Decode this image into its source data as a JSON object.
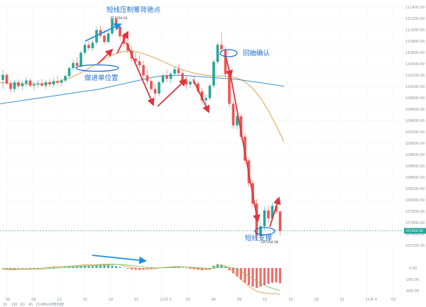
{
  "chart_data": {
    "type": "candlestick",
    "y_axis_ticks": [
      "111400.00",
      "111200.00",
      "111000.00",
      "110800.00",
      "110600.00",
      "110400.00",
      "110200.00",
      "110000.00",
      "109800.00",
      "109600.00",
      "109400.00",
      "109200.00",
      "109000.00",
      "108800.00",
      "108600.00",
      "108400.00",
      "108200.00",
      "108000.00",
      "107800.00",
      "107600.00",
      "107400.00",
      "107200.00"
    ],
    "ylim": [
      107080,
      111480
    ],
    "x_axis_ticks": [
      "06",
      "09",
      "12",
      "15",
      "18",
      "21",
      "11月 3",
      "03",
      "06",
      "09",
      "12",
      "15",
      "18",
      "21",
      "11月 4",
      "03"
    ],
    "high_label": "111250.01",
    "low_label": "107259.58",
    "last_price": "107460.00",
    "last_price_value": 107460,
    "indicator_ticks": [
      "0.00",
      "-200.00",
      "-400.00"
    ],
    "indicator_footer": [
      "1h",
      "1W",
      "1D",
      "4h",
      "15m",
      "Mon",
      "对数刻度"
    ],
    "annotations": [
      {
        "text": "短线压制筹背驰点"
      },
      {
        "text": "回抽确认"
      },
      {
        "text": "做进单位置"
      },
      {
        "text": "短线支撑"
      }
    ],
    "candles": [
      [
        110120,
        110300,
        109960,
        110210
      ],
      [
        110210,
        110240,
        110040,
        110060
      ],
      [
        110060,
        110100,
        109900,
        109960
      ],
      [
        109960,
        110120,
        109900,
        110080
      ],
      [
        110080,
        110130,
        109960,
        110010
      ],
      [
        110010,
        110110,
        109940,
        110060
      ],
      [
        110060,
        110170,
        110010,
        110110
      ],
      [
        110110,
        110150,
        109990,
        110020
      ],
      [
        110020,
        110090,
        109940,
        110040
      ],
      [
        110040,
        110120,
        109990,
        110060
      ],
      [
        110060,
        110140,
        110000,
        110020
      ],
      [
        110020,
        110110,
        109960,
        110080
      ],
      [
        110080,
        110140,
        110000,
        110040
      ],
      [
        110040,
        110160,
        109990,
        110100
      ],
      [
        110100,
        110190,
        110030,
        110070
      ],
      [
        110070,
        110150,
        110010,
        110110
      ],
      [
        110110,
        110220,
        110080,
        110190
      ],
      [
        110190,
        110360,
        110160,
        110330
      ],
      [
        110330,
        110480,
        110290,
        110420
      ],
      [
        110420,
        110520,
        110330,
        110370
      ],
      [
        110370,
        110640,
        110340,
        110600
      ],
      [
        110600,
        110790,
        110560,
        110740
      ],
      [
        110740,
        110810,
        110640,
        110680
      ],
      [
        110680,
        110820,
        110640,
        110780
      ],
      [
        110780,
        111060,
        110740,
        111000
      ],
      [
        111000,
        111080,
        110860,
        110900
      ],
      [
        110900,
        111000,
        110740,
        110790
      ],
      [
        110790,
        110980,
        110760,
        110940
      ],
      [
        110940,
        111250,
        110900,
        111190
      ],
      [
        111190,
        111230,
        110990,
        111060
      ],
      [
        111060,
        111110,
        110840,
        110890
      ],
      [
        110890,
        110960,
        110700,
        110760
      ],
      [
        110760,
        110850,
        110580,
        110640
      ],
      [
        110640,
        110720,
        110440,
        110500
      ],
      [
        110500,
        110590,
        110380,
        110450
      ],
      [
        110450,
        110560,
        110320,
        110380
      ],
      [
        110380,
        110460,
        110140,
        110200
      ],
      [
        110200,
        110300,
        110040,
        110100
      ],
      [
        110100,
        110140,
        109920,
        109960
      ],
      [
        109960,
        110040,
        109800,
        109880
      ],
      [
        109880,
        110110,
        109840,
        110080
      ],
      [
        110080,
        110240,
        110040,
        110200
      ],
      [
        110200,
        110300,
        110080,
        110140
      ],
      [
        110140,
        110260,
        110060,
        110230
      ],
      [
        110230,
        110360,
        110180,
        110310
      ],
      [
        110310,
        110400,
        110200,
        110240
      ],
      [
        110240,
        110290,
        110060,
        110110
      ],
      [
        110110,
        110200,
        109960,
        110040
      ],
      [
        110040,
        110140,
        109980,
        110090
      ],
      [
        110090,
        110180,
        110010,
        110060
      ],
      [
        110060,
        110110,
        109880,
        109920
      ],
      [
        109920,
        109980,
        109700,
        109760
      ],
      [
        109760,
        109860,
        109680,
        109800
      ],
      [
        109800,
        110060,
        109760,
        110020
      ],
      [
        110020,
        110480,
        109980,
        110440
      ],
      [
        110440,
        110780,
        110400,
        110740
      ],
      [
        110740,
        110960,
        110600,
        110660
      ],
      [
        110660,
        110700,
        110160,
        110220
      ],
      [
        110220,
        110260,
        109640,
        109700
      ],
      [
        109700,
        109760,
        109260,
        109320
      ],
      [
        109320,
        109540,
        109240,
        109480
      ],
      [
        109480,
        109520,
        109060,
        109120
      ],
      [
        109120,
        109180,
        108640,
        108700
      ],
      [
        108700,
        108760,
        108240,
        108300
      ],
      [
        108300,
        108360,
        107880,
        107940
      ],
      [
        107940,
        108020,
        107300,
        107380
      ],
      [
        107380,
        107600,
        107300,
        107540
      ],
      [
        107540,
        107880,
        107480,
        107820
      ],
      [
        107820,
        107900,
        107600,
        107680
      ],
      [
        107680,
        107960,
        107640,
        107900
      ],
      [
        107900,
        108040,
        107760,
        107800
      ],
      [
        107800,
        107820,
        107380,
        107460
      ]
    ],
    "series": [
      {
        "color": "#e0a050",
        "values": [
          110080,
          110060,
          110050,
          110050,
          110050,
          110050,
          110060,
          110080,
          110110,
          110150,
          110210,
          110280,
          110360,
          110440,
          110520,
          110580,
          110620,
          110630,
          110610,
          110570,
          110520,
          110460,
          110400,
          110340,
          110290,
          110250,
          110220,
          110200,
          110190,
          110190,
          110180,
          110150,
          110080,
          109960,
          109790,
          109570,
          109310,
          109030
        ]
      },
      {
        "color": "#3a8fcf",
        "values": [
          109700,
          109720,
          109740,
          109760,
          109780,
          109800,
          109820,
          109840,
          109860,
          109880,
          109900,
          109920,
          109940,
          109960,
          109990,
          110020,
          110050,
          110080,
          110110,
          110140,
          110170,
          110190,
          110200,
          110200,
          110200,
          110190,
          110180,
          110170,
          110160,
          110150,
          110140,
          110130,
          110110,
          110090,
          110070,
          110050,
          110030,
          110010
        ]
      }
    ],
    "histogram": [
      -10,
      -20,
      -30,
      -25,
      -15,
      -10,
      -5,
      -10,
      -15,
      -10,
      -5,
      5,
      10,
      15,
      10,
      5,
      20,
      25,
      30,
      35,
      40,
      45,
      40,
      35,
      45,
      50,
      55,
      50,
      45,
      35,
      20,
      5,
      -10,
      -25,
      -30,
      -35,
      -30,
      -25,
      -20,
      -10,
      5,
      10,
      15,
      20,
      25,
      15,
      5,
      -5,
      -15,
      -20,
      -30,
      -40,
      -30,
      -20,
      40,
      70,
      60,
      20,
      -40,
      -90,
      -150,
      -210,
      -260,
      -300,
      -330,
      -350,
      -330,
      -300,
      -280,
      -260,
      -250,
      -270
    ],
    "dif": [
      -20,
      -25,
      -30,
      -30,
      -25,
      -20,
      -15,
      -15,
      -15,
      -10,
      -5,
      5,
      15,
      20,
      25,
      25,
      30,
      35,
      40,
      45,
      50,
      55,
      55,
      55,
      60,
      65,
      70,
      70,
      70,
      65,
      55,
      40,
      25,
      10,
      0,
      -10,
      -15,
      -15,
      -15,
      -10,
      0,
      10,
      15,
      20,
      25,
      25,
      20,
      15,
      5,
      0,
      -10,
      -20,
      -25,
      -25,
      10,
      40,
      55,
      40,
      0,
      -60,
      -130,
      -200,
      -260,
      -320,
      -370,
      -410,
      -430,
      -440,
      -450,
      -450,
      -455,
      -470
    ],
    "dea": [
      -15,
      -17,
      -20,
      -22,
      -23,
      -23,
      -22,
      -21,
      -20,
      -18,
      -16,
      -12,
      -7,
      -2,
      3,
      7,
      11,
      16,
      21,
      26,
      31,
      36,
      40,
      43,
      47,
      51,
      55,
      58,
      61,
      62,
      61,
      57,
      51,
      43,
      35,
      26,
      18,
      11,
      6,
      3,
      2,
      4,
      6,
      9,
      12,
      15,
      16,
      16,
      14,
      11,
      7,
      1,
      -4,
      -8,
      -4,
      5,
      15,
      20,
      16,
      4,
      -23,
      -58,
      -98,
      -142,
      -187,
      -232,
      -272,
      -306,
      -335,
      -358,
      -377,
      -396
    ]
  }
}
